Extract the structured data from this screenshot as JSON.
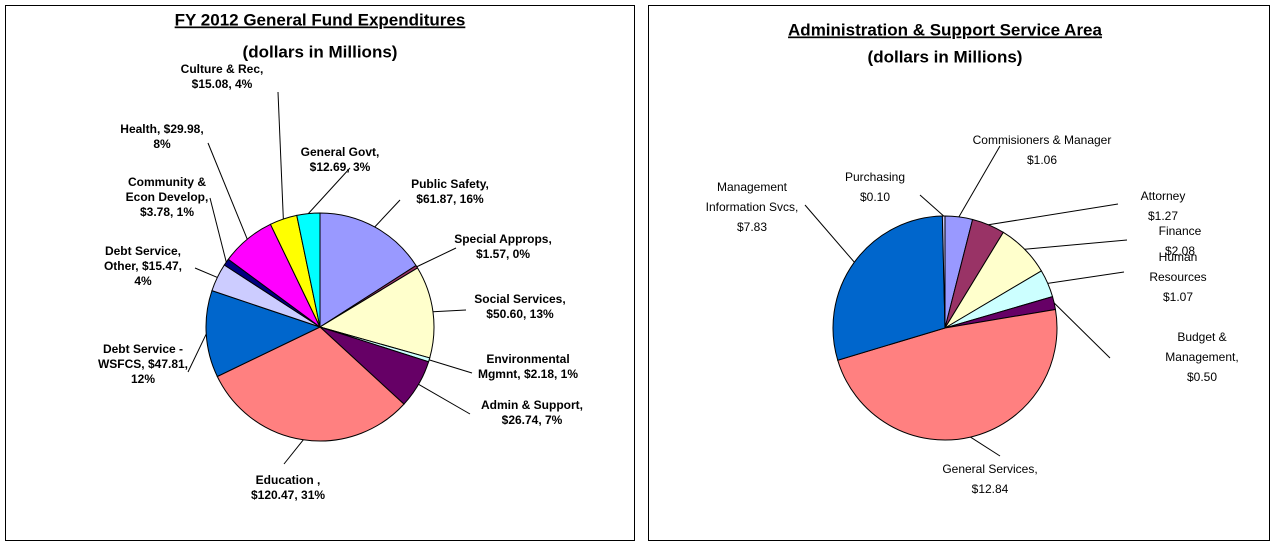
{
  "chart_data": [
    {
      "type": "pie",
      "title": "FY 2012 General Fund Expenditures",
      "subtitle": "(dollars in Millions)",
      "categories": [
        "Public Safety",
        "Special Approps",
        "Social Services",
        "Environmental Mgmnt",
        "Admin & Support",
        "Education",
        "Debt Service - WSFCS",
        "Debt Service, Other",
        "Community & Econ Develop",
        "Health",
        "Culture & Rec",
        "General Govt"
      ],
      "values": [
        61.87,
        1.57,
        50.6,
        2.18,
        26.74,
        120.47,
        47.81,
        15.47,
        3.78,
        29.98,
        15.08,
        12.69
      ],
      "value_labels": [
        [
          "Public Safety,",
          "$61.87, 16%"
        ],
        [
          "Special Approps,",
          "$1.57, 0%"
        ],
        [
          "Social Services,",
          "$50.60, 13%"
        ],
        [
          "Environmental",
          "Mgmnt, $2.18, 1%"
        ],
        [
          "Admin & Support,",
          "$26.74, 7%"
        ],
        [
          "Education ,",
          "$120.47, 31%"
        ],
        [
          "Debt Service -",
          "WSFCS, $47.81,",
          "12%"
        ],
        [
          "Debt Service,",
          "Other, $15.47,",
          "4%"
        ],
        [
          "Community &",
          "Econ Develop,",
          "$3.78, 1%"
        ],
        [
          "Health, $29.98,",
          "8%"
        ],
        [
          "Culture & Rec,",
          "$15.08, 4%"
        ],
        [
          "General Govt,",
          "$12.69, 3%"
        ]
      ],
      "colors": [
        "#9999ff",
        "#993366",
        "#ffffcc",
        "#ccffff",
        "#660066",
        "#ff8080",
        "#0066cc",
        "#ccccff",
        "#000080",
        "#ff00ff",
        "#ffff00",
        "#00ffff"
      ]
    },
    {
      "type": "pie",
      "title": "Administration & Support Service Area",
      "subtitle": "(dollars in Millions)",
      "categories": [
        "Commisioners & Manager",
        "Attorney",
        "Finance",
        "Human Resources",
        "Budget & Management",
        "General Services",
        "Management Information Svcs",
        "Purchasing"
      ],
      "values": [
        1.06,
        1.27,
        2.08,
        1.07,
        0.5,
        12.84,
        7.83,
        0.1
      ],
      "value_labels": [
        [
          "Commisioners & Manager",
          "$1.06"
        ],
        [
          "Attorney",
          "$1.27"
        ],
        [
          "Finance",
          "$2.08"
        ],
        [
          "Human",
          "Resources",
          "$1.07"
        ],
        [
          "Budget &",
          "Management,",
          "$0.50"
        ],
        [
          "General Services,",
          "$12.84"
        ],
        [
          "Management",
          "Information Svcs,",
          "$7.83"
        ],
        [
          "Purchasing",
          "$0.10"
        ]
      ],
      "colors": [
        "#9999ff",
        "#993366",
        "#ffffcc",
        "#ccffff",
        "#660066",
        "#ff8080",
        "#0066cc",
        "#ccccff"
      ]
    }
  ]
}
